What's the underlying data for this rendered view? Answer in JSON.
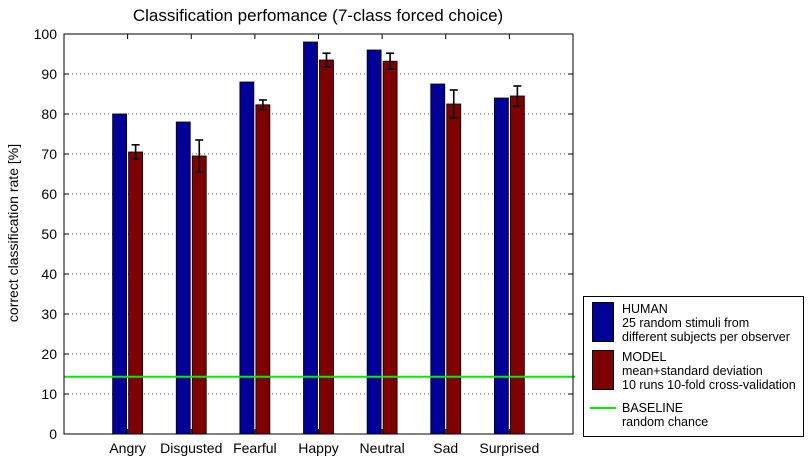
{
  "chart_data": {
    "type": "bar",
    "title": "Classification perfomance (7-class forced choice)",
    "xlabel": "",
    "ylabel": "correct classification rate [%]",
    "ylim": [
      0,
      100
    ],
    "yticks": [
      0,
      10,
      20,
      30,
      40,
      50,
      60,
      70,
      80,
      90,
      100
    ],
    "grid": true,
    "categories": [
      "Angry",
      "Disgusted",
      "Fearful",
      "Happy",
      "Neutral",
      "Sad",
      "Surprised"
    ],
    "series": [
      {
        "name": "HUMAN",
        "values": [
          80,
          78,
          88,
          98,
          96,
          87.5,
          84
        ],
        "color": "#000099"
      },
      {
        "name": "MODEL",
        "values": [
          70.5,
          69.5,
          82.3,
          93.5,
          93.2,
          82.5,
          84.5
        ],
        "error": [
          1.8,
          4.0,
          1.2,
          1.7,
          2.0,
          3.5,
          2.5
        ],
        "color": "#7f0000"
      }
    ],
    "baseline": {
      "name": "BASELINE",
      "value": 14.3,
      "color": "#00ee00"
    },
    "legend_position": "bottom-right, outside plot"
  },
  "legend": {
    "human": {
      "title": "HUMAN",
      "line1": "25 random stimuli from",
      "line2": "different subjects per observer"
    },
    "model": {
      "title": "MODEL",
      "line1": "mean+standard deviation",
      "line2": "10 runs 10-fold cross-validation"
    },
    "baseline": {
      "title": "BASELINE",
      "line1": "random chance"
    }
  }
}
